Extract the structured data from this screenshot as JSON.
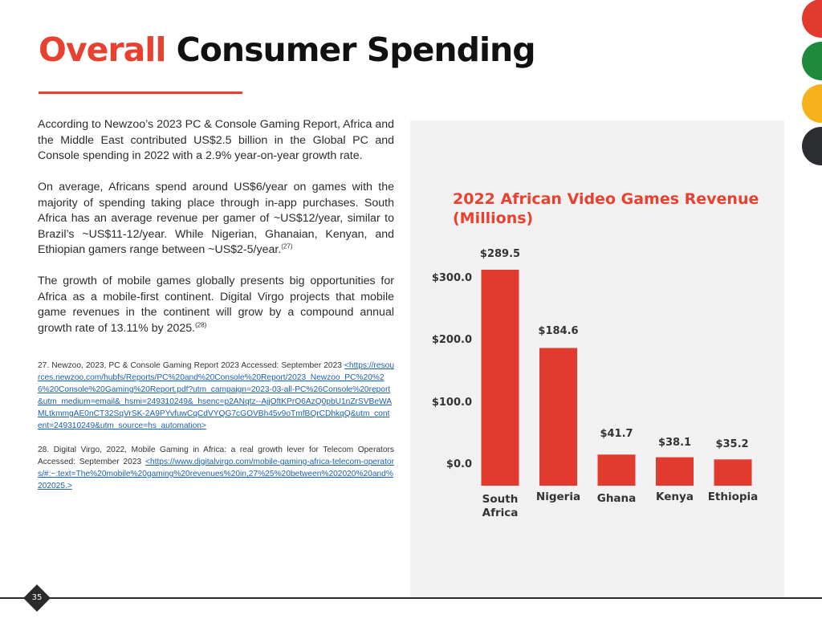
{
  "title": {
    "accent": "Overall",
    "rest": " Consumer Spending"
  },
  "brand_colors": {
    "accent": "#e8412f",
    "dots": [
      "#e23a2e",
      "#1f8a3c",
      "#f6b21b",
      "#2b2d31"
    ]
  },
  "body": {
    "p1": "According to Newzoo’s 2023 PC & Console Gaming Report, Africa and the Middle East contributed US$2.5 billion in the Global PC and Console spending in 2022 with a 2.9% year-on-year growth rate.",
    "p2": "On average, Africans spend around US$6/year on games with the majority of spending taking place through in-app purchases. South Africa has an average revenue per gamer of ~US$12/year, similar to Brazil’s ~US$11-12/year. While Nigerian, Ghanaian, Kenyan, and Ethiopian gamers range between ~US$2-5/year.",
    "p2_ref": "(27)",
    "p3": "The growth of mobile games globally presents big opportunities for Africa as a mobile-first continent. Digital Virgo projects that mobile game revenues in the continent will grow by a compound annual growth rate of 13.11% by 2025.",
    "p3_ref": "(28)"
  },
  "footnotes": {
    "n27_text": "27. Newzoo, 2023, PC & Console Gaming Report 2023 Accessed: September 2023 ",
    "n27_link": "<https://resources.newzoo.com/hubfs/Reports/PC%20and%20Console%20Report/2023_Newzoo_PC%20%26%20Console%20Gaming%20Report.pdf?utm_campaign=2023-03-all-PC%26Console%20report&utm_medium=email&_hsmi=249310249&_hsenc=p2ANqtz--AjjOftKPrO6AzQ0pbU1nZrSVBeWAMLtkmmgAE0nCT32SqVrSK-2A9PYvfuwCqCdVYQG7cGOVBh45v9oTmfBQrCDhkqQ&utm_content=249310249&utm_source=hs_automation> ",
    "n28_text": "28. Digital Virgo, 2022, Mobile Gaming in Africa: a real growth lever for Telecom Operators Accessed: September 2023 ",
    "n28_link": "<https://www.digitalvirgo.com/mobile-gaming-africa-telecom-operators/#:~:text=The%20mobile%20gaming%20revenues%20in,27%25%20between%202020%20and%202025.> "
  },
  "chart_data": {
    "type": "bar",
    "title": "2022 African Video Games Revenue (Millions)",
    "title_lines": [
      "2022 African Video Games Revenue",
      "(Millions)"
    ],
    "categories": [
      "South Africa",
      "Nigeria",
      "Ghana",
      "Kenya",
      "Ethiopia"
    ],
    "category_lines": [
      [
        "South",
        "Africa"
      ],
      [
        "Nigeria"
      ],
      [
        "Ghana"
      ],
      [
        "Kenya"
      ],
      [
        "Ethiopia"
      ]
    ],
    "values": [
      289.5,
      184.6,
      41.7,
      38.1,
      35.2
    ],
    "value_labels": [
      "$289.5",
      "$184.6",
      "$41.7",
      "$38.1",
      "$35.2"
    ],
    "y_ticks": [
      0,
      100,
      200,
      300
    ],
    "y_tick_labels": [
      "$0.0",
      "$100.0",
      "$200.0",
      "$300.0"
    ],
    "ylim": [
      0,
      300
    ],
    "xlabel": "",
    "ylabel": "",
    "grid": false,
    "bar_color": "#e23a2e"
  },
  "page_number": "35"
}
